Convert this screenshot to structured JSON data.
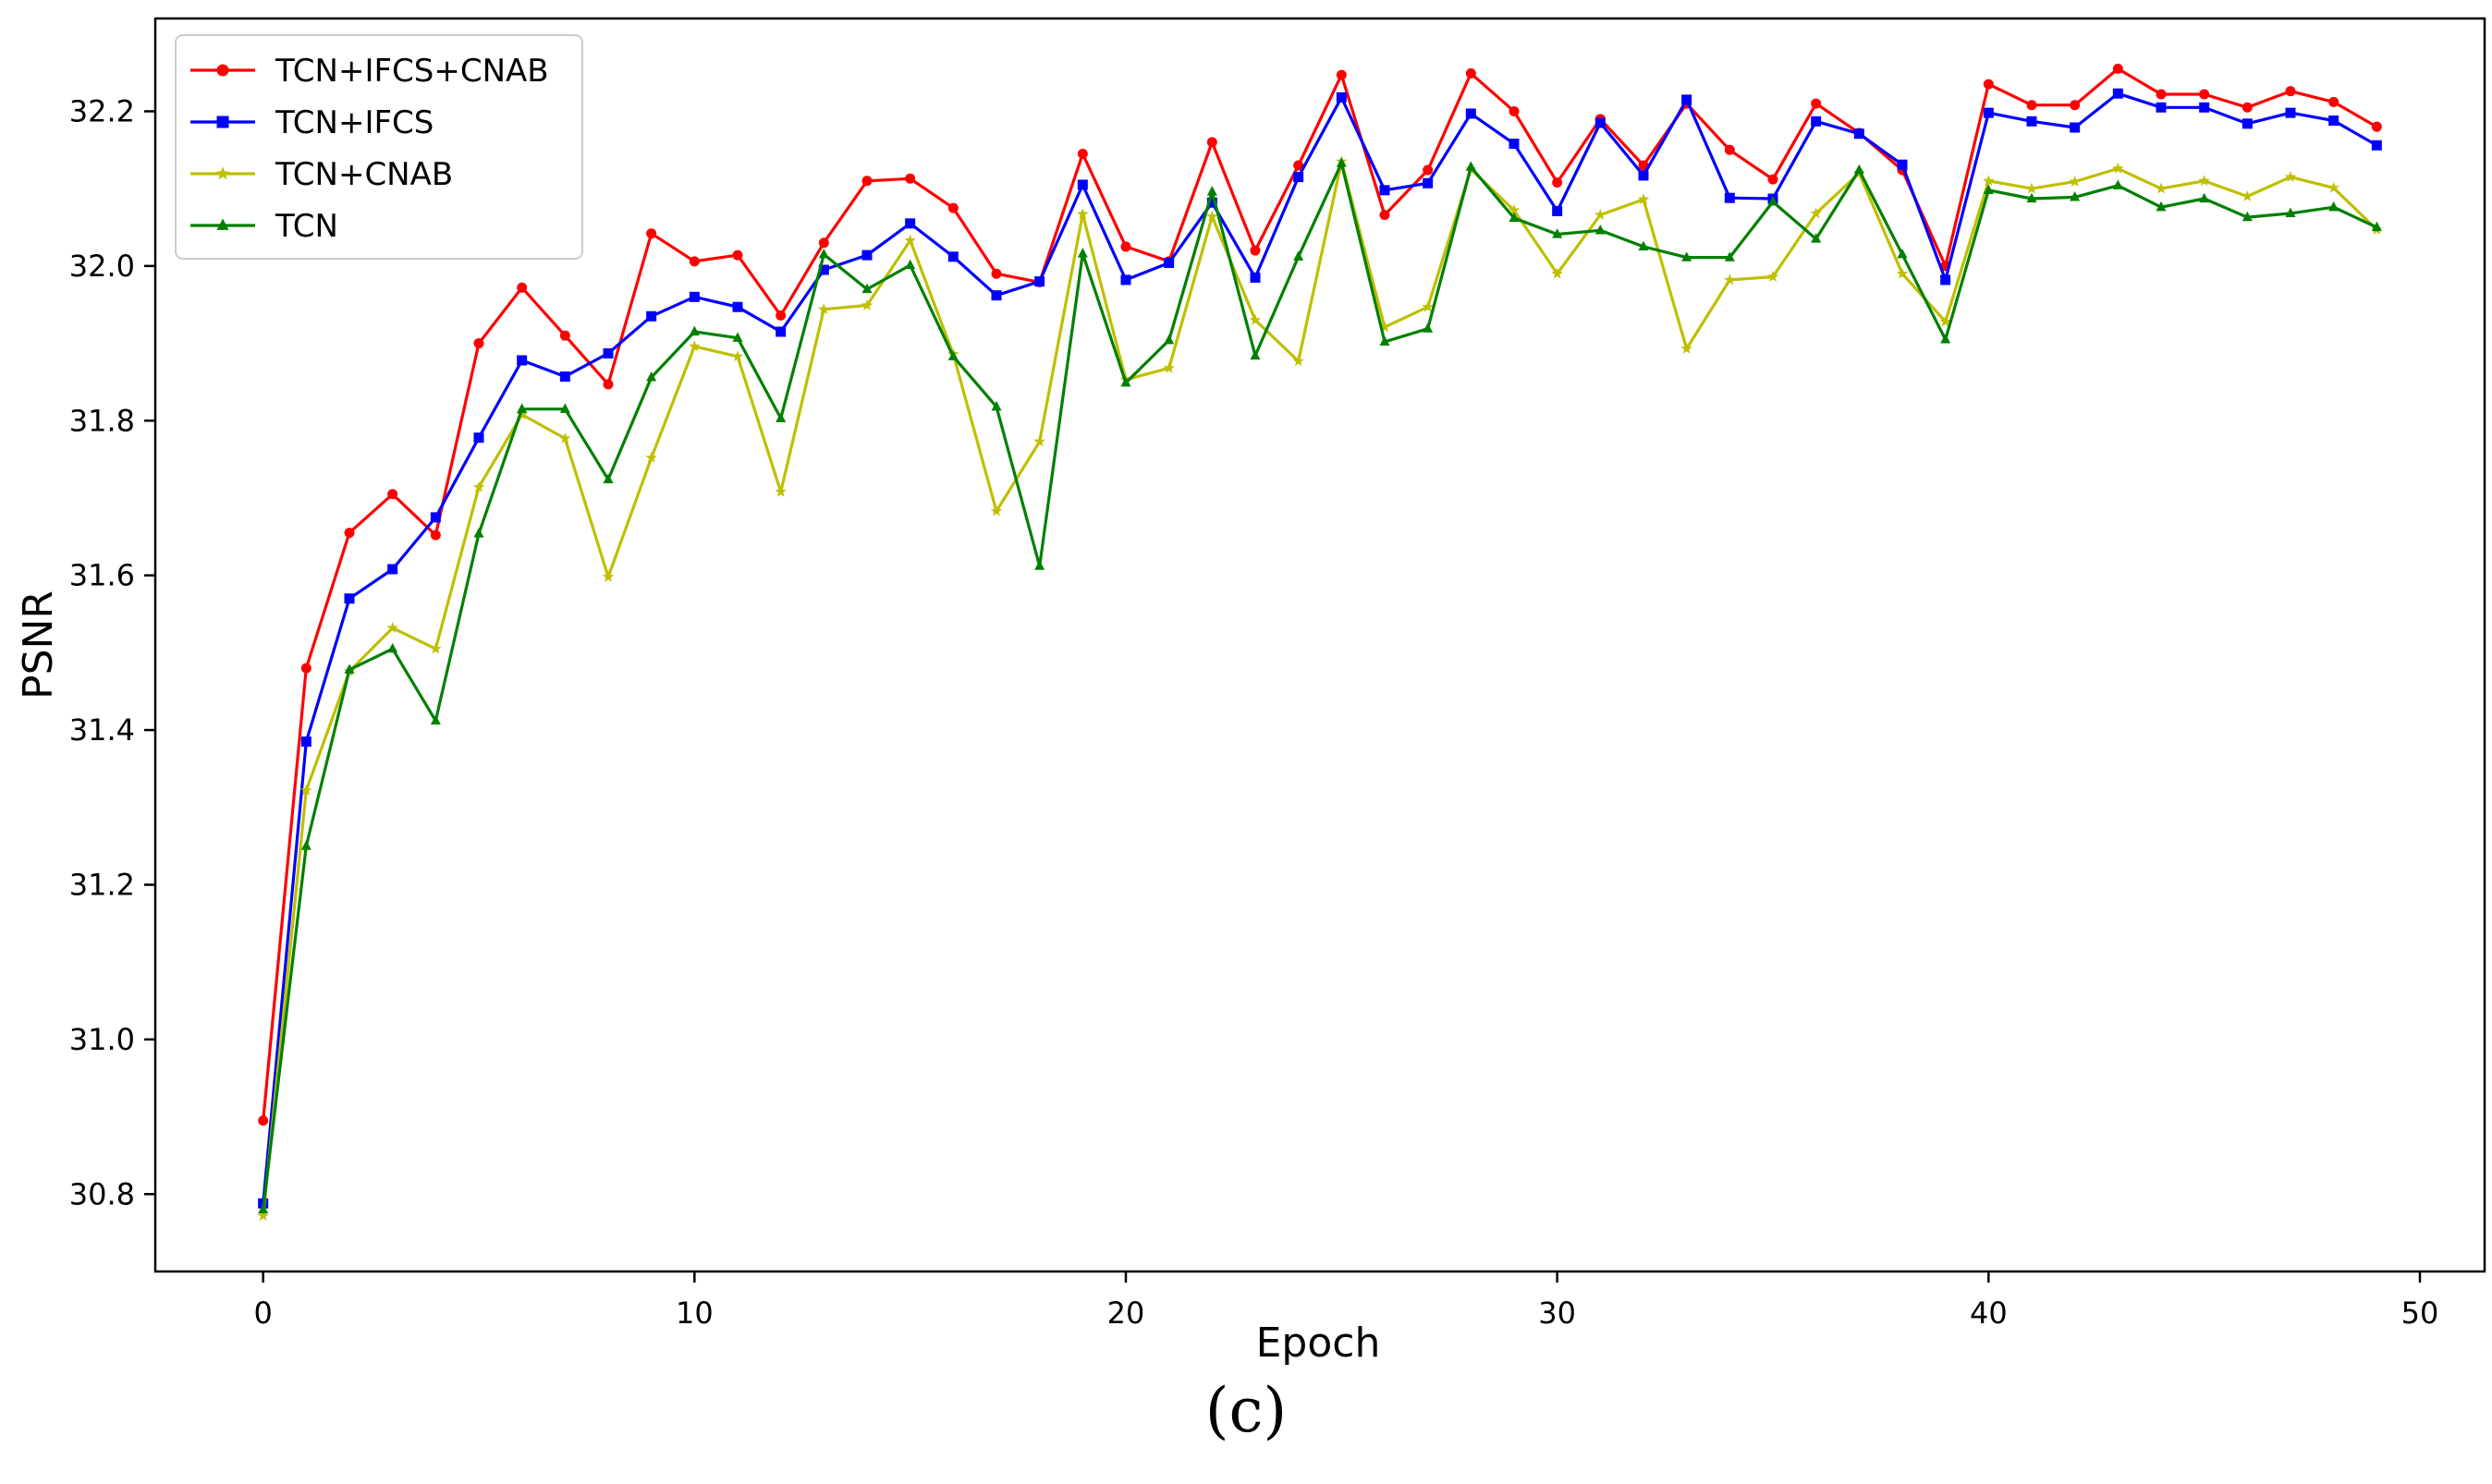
{
  "caption": "(c)",
  "chart_data": {
    "type": "line",
    "xlabel": "Epoch",
    "ylabel": "PSNR",
    "xlim": [
      -2.5,
      51.5
    ],
    "ylim": [
      30.7,
      32.32
    ],
    "xticks": [
      0,
      10,
      20,
      30,
      40,
      50
    ],
    "yticks": [
      30.8,
      31.0,
      31.2,
      31.4,
      31.6,
      31.8,
      32.0,
      32.2
    ],
    "grid": false,
    "legend_position": "upper-left",
    "x": [
      0,
      1,
      2,
      3,
      4,
      5,
      6,
      7,
      8,
      9,
      10,
      11,
      12,
      13,
      14,
      15,
      16,
      17,
      18,
      19,
      20,
      21,
      22,
      23,
      24,
      25,
      26,
      27,
      28,
      29,
      30,
      31,
      32,
      33,
      34,
      35,
      36,
      37,
      38,
      39,
      40,
      41,
      42,
      43,
      44,
      45,
      46,
      47,
      48,
      49
    ],
    "series": [
      {
        "name": "TCN+IFCS+CNAB",
        "color": "#ff0000",
        "marker": "circle",
        "values": [
          30.895,
          31.48,
          31.655,
          31.705,
          31.652,
          31.9,
          31.972,
          31.91,
          31.847,
          32.042,
          32.006,
          32.014,
          31.936,
          32.03,
          32.11,
          32.113,
          32.075,
          31.99,
          31.979,
          32.145,
          32.025,
          32.006,
          32.16,
          32.02,
          32.13,
          32.247,
          32.066,
          32.124,
          32.249,
          32.2,
          32.108,
          32.19,
          32.13,
          32.21,
          32.15,
          32.112,
          32.21,
          32.172,
          32.124,
          32.0,
          32.235,
          32.208,
          32.208,
          32.255,
          32.222,
          32.222,
          32.205,
          32.226,
          32.212,
          32.18
        ]
      },
      {
        "name": "TCN+IFCS",
        "color": "#0000ff",
        "marker": "square",
        "values": [
          30.788,
          31.385,
          31.57,
          31.608,
          31.675,
          31.778,
          31.878,
          31.857,
          31.887,
          31.935,
          31.96,
          31.947,
          31.915,
          31.995,
          32.014,
          32.055,
          32.012,
          31.962,
          31.98,
          32.105,
          31.982,
          32.004,
          32.082,
          31.985,
          32.115,
          32.218,
          32.098,
          32.107,
          32.197,
          32.158,
          32.071,
          32.185,
          32.117,
          32.215,
          32.088,
          32.087,
          32.187,
          32.171,
          32.131,
          31.982,
          32.198,
          32.187,
          32.179,
          32.223,
          32.205,
          32.205,
          32.184,
          32.198,
          32.188,
          32.156
        ]
      },
      {
        "name": "TCN+CNAB",
        "color": "#bfbf00",
        "marker": "star",
        "values": [
          30.772,
          31.322,
          31.476,
          31.532,
          31.505,
          31.714,
          31.808,
          31.777,
          31.598,
          31.752,
          31.896,
          31.883,
          31.708,
          31.944,
          31.949,
          32.033,
          31.886,
          31.683,
          31.773,
          32.067,
          31.853,
          31.868,
          32.064,
          31.93,
          31.877,
          32.135,
          31.921,
          31.947,
          32.125,
          32.072,
          31.99,
          32.066,
          32.086,
          31.893,
          31.982,
          31.986,
          32.068,
          32.12,
          31.99,
          31.928,
          32.11,
          32.1,
          32.109,
          32.126,
          32.1,
          32.11,
          32.09,
          32.115,
          32.101,
          32.047
        ]
      },
      {
        "name": "TCN",
        "color": "#008000",
        "marker": "triangle",
        "values": [
          30.78,
          31.25,
          31.478,
          31.505,
          31.412,
          31.654,
          31.815,
          31.815,
          31.724,
          31.856,
          31.915,
          31.907,
          31.803,
          32.015,
          31.97,
          32.001,
          31.883,
          31.818,
          31.612,
          32.016,
          31.849,
          31.904,
          32.096,
          31.884,
          32.012,
          32.133,
          31.902,
          31.919,
          32.128,
          32.062,
          32.041,
          32.046,
          32.025,
          32.011,
          32.011,
          32.083,
          32.035,
          32.124,
          32.015,
          31.905,
          32.098,
          32.087,
          32.089,
          32.104,
          32.076,
          32.087,
          32.063,
          32.068,
          32.076,
          32.05
        ]
      }
    ]
  }
}
